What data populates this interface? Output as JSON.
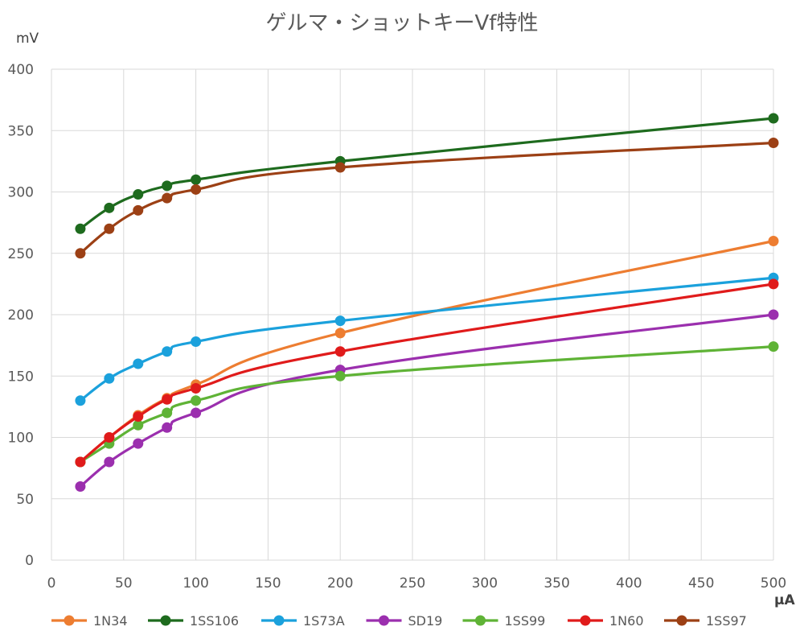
{
  "chart_data": {
    "type": "line",
    "title": "ゲルマ・ショットキーVf特性",
    "ylabel": "mV",
    "xlabel": "μA",
    "xlim": [
      0,
      500
    ],
    "ylim": [
      0,
      400
    ],
    "x_ticks": [
      0,
      50,
      100,
      150,
      200,
      250,
      300,
      350,
      400,
      450,
      500
    ],
    "y_ticks": [
      0,
      50,
      100,
      150,
      200,
      250,
      300,
      350,
      400
    ],
    "grid": true,
    "legend_position": "bottom",
    "x": [
      20,
      40,
      60,
      80,
      100,
      200,
      500
    ],
    "series": [
      {
        "name": "1N34",
        "color": "#ed7d31",
        "values": [
          80,
          100,
          118,
          132,
          143,
          185,
          260
        ]
      },
      {
        "name": "1SS106",
        "color": "#1e6b1e",
        "values": [
          270,
          287,
          298,
          305,
          310,
          325,
          360
        ]
      },
      {
        "name": "1S73A",
        "color": "#1ba1dc",
        "values": [
          130,
          148,
          160,
          170,
          178,
          195,
          230
        ]
      },
      {
        "name": "SD19",
        "color": "#9b2fae",
        "values": [
          60,
          80,
          95,
          108,
          120,
          155,
          200
        ]
      },
      {
        "name": "1SS99",
        "color": "#5fb336",
        "values": [
          80,
          95,
          110,
          120,
          130,
          150,
          174
        ]
      },
      {
        "name": "1N60",
        "color": "#e01b1b",
        "values": [
          80,
          100,
          117,
          131,
          140,
          170,
          225
        ]
      },
      {
        "name": "1SS97",
        "color": "#9c4015",
        "values": [
          250,
          270,
          285,
          295,
          302,
          320,
          340
        ]
      }
    ]
  }
}
